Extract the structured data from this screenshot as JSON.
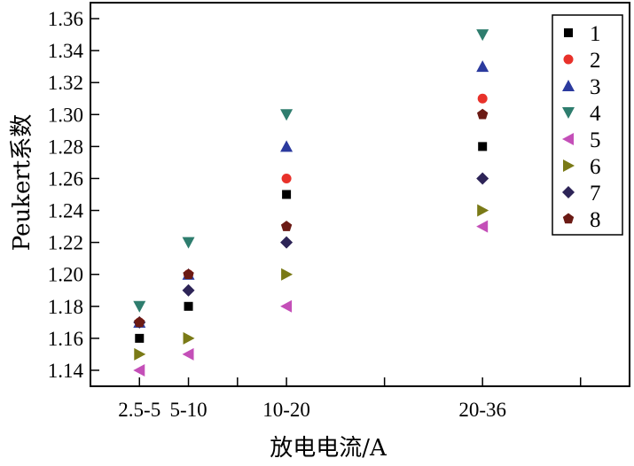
{
  "chart_data": {
    "type": "scatter",
    "xlabel": "放电电流/A",
    "ylabel": "Peukert系数",
    "ylim": [
      1.13,
      1.37
    ],
    "xlim": [
      0,
      11
    ],
    "yticks": [
      "1.14",
      "1.16",
      "1.18",
      "1.20",
      "1.22",
      "1.24",
      "1.26",
      "1.28",
      "1.30",
      "1.32",
      "1.34",
      "1.36"
    ],
    "xticks": [
      {
        "pos": 1,
        "label": "2.5-5"
      },
      {
        "pos": 2,
        "label": "5-10"
      },
      {
        "pos": 4,
        "label": "10-20"
      },
      {
        "pos": 8,
        "label": "20-36"
      }
    ],
    "x_minor_ticks": [
      3,
      6,
      10
    ],
    "legend_position": "top-right",
    "grid": false,
    "series": [
      {
        "name": "1",
        "marker": "square",
        "color": "#000000",
        "points": [
          [
            1,
            1.16
          ],
          [
            2,
            1.18
          ],
          [
            4,
            1.25
          ],
          [
            8,
            1.28
          ]
        ]
      },
      {
        "name": "2",
        "marker": "circle",
        "color": "#e8312a",
        "points": [
          [
            1,
            1.17
          ],
          [
            2,
            1.2
          ],
          [
            4,
            1.26
          ],
          [
            8,
            1.31
          ]
        ]
      },
      {
        "name": "3",
        "marker": "triangle-up",
        "color": "#2b3a9e",
        "points": [
          [
            1,
            1.17
          ],
          [
            2,
            1.2
          ],
          [
            4,
            1.28
          ],
          [
            8,
            1.33
          ]
        ]
      },
      {
        "name": "4",
        "marker": "triangle-down",
        "color": "#2e7d6e",
        "points": [
          [
            1,
            1.18
          ],
          [
            2,
            1.22
          ],
          [
            4,
            1.3
          ],
          [
            8,
            1.35
          ]
        ]
      },
      {
        "name": "5",
        "marker": "triangle-left",
        "color": "#c44fb8",
        "points": [
          [
            1,
            1.14
          ],
          [
            2,
            1.15
          ],
          [
            4,
            1.18
          ],
          [
            8,
            1.23
          ]
        ]
      },
      {
        "name": "6",
        "marker": "triangle-right",
        "color": "#7a7a16",
        "points": [
          [
            1,
            1.15
          ],
          [
            2,
            1.16
          ],
          [
            4,
            1.2
          ],
          [
            8,
            1.24
          ]
        ]
      },
      {
        "name": "7",
        "marker": "diamond",
        "color": "#2d2457",
        "points": [
          [
            1,
            1.17
          ],
          [
            2,
            1.19
          ],
          [
            4,
            1.22
          ],
          [
            8,
            1.26
          ]
        ]
      },
      {
        "name": "8",
        "marker": "pentagon",
        "color": "#6b1a14",
        "points": [
          [
            1,
            1.17
          ],
          [
            2,
            1.2
          ],
          [
            4,
            1.23
          ],
          [
            8,
            1.3
          ]
        ]
      }
    ]
  }
}
